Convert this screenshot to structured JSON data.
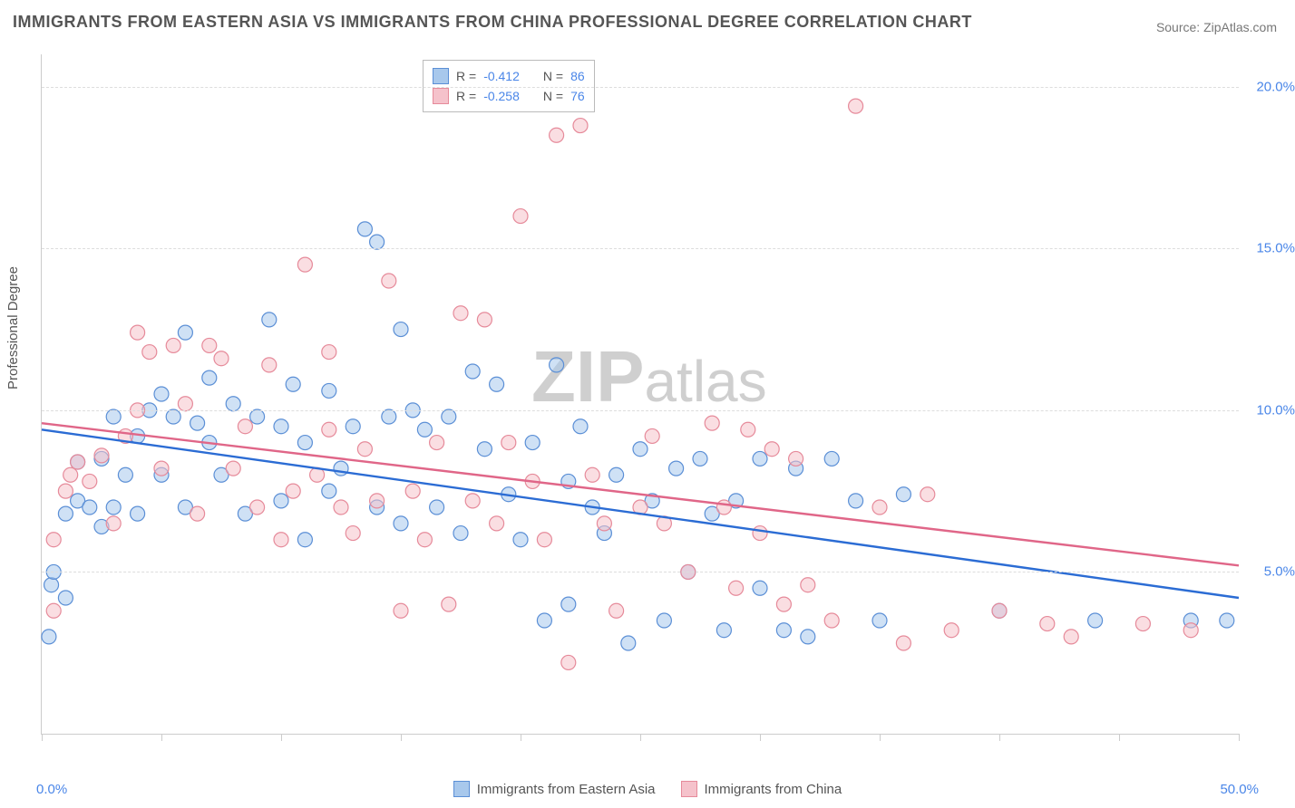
{
  "title": "IMMIGRANTS FROM EASTERN ASIA VS IMMIGRANTS FROM CHINA PROFESSIONAL DEGREE CORRELATION CHART",
  "source_label": "Source: ",
  "source_name": "ZipAtlas.com",
  "watermark_text": "ZIPatlas",
  "ylabel": "Professional Degree",
  "chart": {
    "type": "scatter",
    "x_range": [
      0,
      50
    ],
    "y_range": [
      0,
      21
    ],
    "y_gridlines": [
      5,
      10,
      15,
      20
    ],
    "y_tick_labels": [
      "5.0%",
      "10.0%",
      "15.0%",
      "20.0%"
    ],
    "x_tick_positions": [
      0,
      5,
      10,
      15,
      20,
      25,
      30,
      35,
      40,
      45,
      50
    ],
    "x_min_label": "0.0%",
    "x_max_label": "50.0%",
    "background_color": "#ffffff",
    "grid_color": "#dddddd",
    "axis_color": "#cccccc",
    "tick_label_color": "#4a86e8",
    "marker_radius": 8,
    "marker_opacity": 0.55,
    "series": [
      {
        "name": "Immigrants from Eastern Asia",
        "fill": "#a8c8ec",
        "stroke": "#5b8fd6",
        "line_color": "#2b6cd4",
        "r_value": "-0.412",
        "n_value": "86",
        "trend": {
          "x1": 0,
          "y1": 9.4,
          "x2": 50,
          "y2": 4.2
        },
        "points": [
          [
            0.3,
            3.0
          ],
          [
            0.4,
            4.6
          ],
          [
            0.5,
            5.0
          ],
          [
            1,
            4.2
          ],
          [
            1,
            6.8
          ],
          [
            1.5,
            7.2
          ],
          [
            1.5,
            8.4
          ],
          [
            2,
            7.0
          ],
          [
            2.5,
            6.4
          ],
          [
            2.5,
            8.5
          ],
          [
            3,
            7.0
          ],
          [
            3,
            9.8
          ],
          [
            3.5,
            8.0
          ],
          [
            4,
            6.8
          ],
          [
            4,
            9.2
          ],
          [
            4.5,
            10.0
          ],
          [
            5,
            8.0
          ],
          [
            5,
            10.5
          ],
          [
            5.5,
            9.8
          ],
          [
            6,
            7.0
          ],
          [
            6,
            12.4
          ],
          [
            6.5,
            9.6
          ],
          [
            7,
            9.0
          ],
          [
            7,
            11.0
          ],
          [
            7.5,
            8.0
          ],
          [
            8,
            10.2
          ],
          [
            8.5,
            6.8
          ],
          [
            9,
            9.8
          ],
          [
            9.5,
            12.8
          ],
          [
            10,
            7.2
          ],
          [
            10,
            9.5
          ],
          [
            10.5,
            10.8
          ],
          [
            11,
            6.0
          ],
          [
            11,
            9.0
          ],
          [
            12,
            7.5
          ],
          [
            12,
            10.6
          ],
          [
            12.5,
            8.2
          ],
          [
            13,
            9.5
          ],
          [
            13.5,
            15.6
          ],
          [
            14,
            7.0
          ],
          [
            14,
            15.2
          ],
          [
            14.5,
            9.8
          ],
          [
            15,
            6.5
          ],
          [
            15,
            12.5
          ],
          [
            15.5,
            10.0
          ],
          [
            16,
            9.4
          ],
          [
            16.5,
            7.0
          ],
          [
            17,
            9.8
          ],
          [
            17.5,
            6.2
          ],
          [
            18,
            11.2
          ],
          [
            18.5,
            8.8
          ],
          [
            19,
            10.8
          ],
          [
            19.5,
            7.4
          ],
          [
            20,
            6.0
          ],
          [
            20.5,
            9.0
          ],
          [
            21,
            3.5
          ],
          [
            21.5,
            11.4
          ],
          [
            22,
            7.8
          ],
          [
            22,
            4.0
          ],
          [
            22.5,
            9.5
          ],
          [
            23,
            7.0
          ],
          [
            23.5,
            6.2
          ],
          [
            24,
            8.0
          ],
          [
            24.5,
            2.8
          ],
          [
            25,
            8.8
          ],
          [
            25.5,
            7.2
          ],
          [
            26,
            3.5
          ],
          [
            26.5,
            8.2
          ],
          [
            27,
            5.0
          ],
          [
            27.5,
            8.5
          ],
          [
            28,
            6.8
          ],
          [
            28.5,
            3.2
          ],
          [
            29,
            7.2
          ],
          [
            30,
            8.5
          ],
          [
            30,
            4.5
          ],
          [
            31,
            3.2
          ],
          [
            31.5,
            8.2
          ],
          [
            32,
            3.0
          ],
          [
            33,
            8.5
          ],
          [
            34,
            7.2
          ],
          [
            35,
            3.5
          ],
          [
            36,
            7.4
          ],
          [
            40,
            3.8
          ],
          [
            44,
            3.5
          ],
          [
            48,
            3.5
          ],
          [
            49.5,
            3.5
          ]
        ]
      },
      {
        "name": "Immigrants from China",
        "fill": "#f5c2cb",
        "stroke": "#e68a9a",
        "line_color": "#e06688",
        "r_value": "-0.258",
        "n_value": "76",
        "trend": {
          "x1": 0,
          "y1": 9.6,
          "x2": 50,
          "y2": 5.2
        },
        "points": [
          [
            0.5,
            3.8
          ],
          [
            0.5,
            6.0
          ],
          [
            1,
            7.5
          ],
          [
            1.2,
            8.0
          ],
          [
            1.5,
            8.4
          ],
          [
            2,
            7.8
          ],
          [
            2.5,
            8.6
          ],
          [
            3,
            6.5
          ],
          [
            3.5,
            9.2
          ],
          [
            4,
            10.0
          ],
          [
            4,
            12.4
          ],
          [
            4.5,
            11.8
          ],
          [
            5,
            8.2
          ],
          [
            5.5,
            12.0
          ],
          [
            6,
            10.2
          ],
          [
            6.5,
            6.8
          ],
          [
            7,
            12.0
          ],
          [
            7.5,
            11.6
          ],
          [
            8,
            8.2
          ],
          [
            8.5,
            9.5
          ],
          [
            9,
            7.0
          ],
          [
            9.5,
            11.4
          ],
          [
            10,
            6.0
          ],
          [
            10.5,
            7.5
          ],
          [
            11,
            14.5
          ],
          [
            11.5,
            8.0
          ],
          [
            12,
            11.8
          ],
          [
            12,
            9.4
          ],
          [
            12.5,
            7.0
          ],
          [
            13,
            6.2
          ],
          [
            13.5,
            8.8
          ],
          [
            14,
            7.2
          ],
          [
            14.5,
            14.0
          ],
          [
            15,
            3.8
          ],
          [
            15.5,
            7.5
          ],
          [
            16,
            6.0
          ],
          [
            16.5,
            9.0
          ],
          [
            17,
            4.0
          ],
          [
            17.5,
            13.0
          ],
          [
            18,
            7.2
          ],
          [
            18.5,
            12.8
          ],
          [
            19,
            6.5
          ],
          [
            19.5,
            9.0
          ],
          [
            20,
            16.0
          ],
          [
            20.5,
            7.8
          ],
          [
            21,
            6.0
          ],
          [
            21.5,
            18.5
          ],
          [
            22,
            2.2
          ],
          [
            22.5,
            18.8
          ],
          [
            23,
            8.0
          ],
          [
            23.5,
            6.5
          ],
          [
            24,
            3.8
          ],
          [
            25,
            7.0
          ],
          [
            25.5,
            9.2
          ],
          [
            26,
            6.5
          ],
          [
            27,
            5.0
          ],
          [
            28,
            9.6
          ],
          [
            28.5,
            7.0
          ],
          [
            29,
            4.5
          ],
          [
            29.5,
            9.4
          ],
          [
            30,
            6.2
          ],
          [
            30.5,
            8.8
          ],
          [
            31,
            4.0
          ],
          [
            31.5,
            8.5
          ],
          [
            32,
            4.6
          ],
          [
            33,
            3.5
          ],
          [
            34,
            19.4
          ],
          [
            35,
            7.0
          ],
          [
            36,
            2.8
          ],
          [
            37,
            7.4
          ],
          [
            38,
            3.2
          ],
          [
            40,
            3.8
          ],
          [
            42,
            3.4
          ],
          [
            43,
            3.0
          ],
          [
            46,
            3.4
          ],
          [
            48,
            3.2
          ]
        ]
      }
    ],
    "legend_top": {
      "r_label": "R =",
      "n_label": "N ="
    },
    "bottom_legend": [
      {
        "series_index": 0
      },
      {
        "series_index": 1
      }
    ]
  }
}
